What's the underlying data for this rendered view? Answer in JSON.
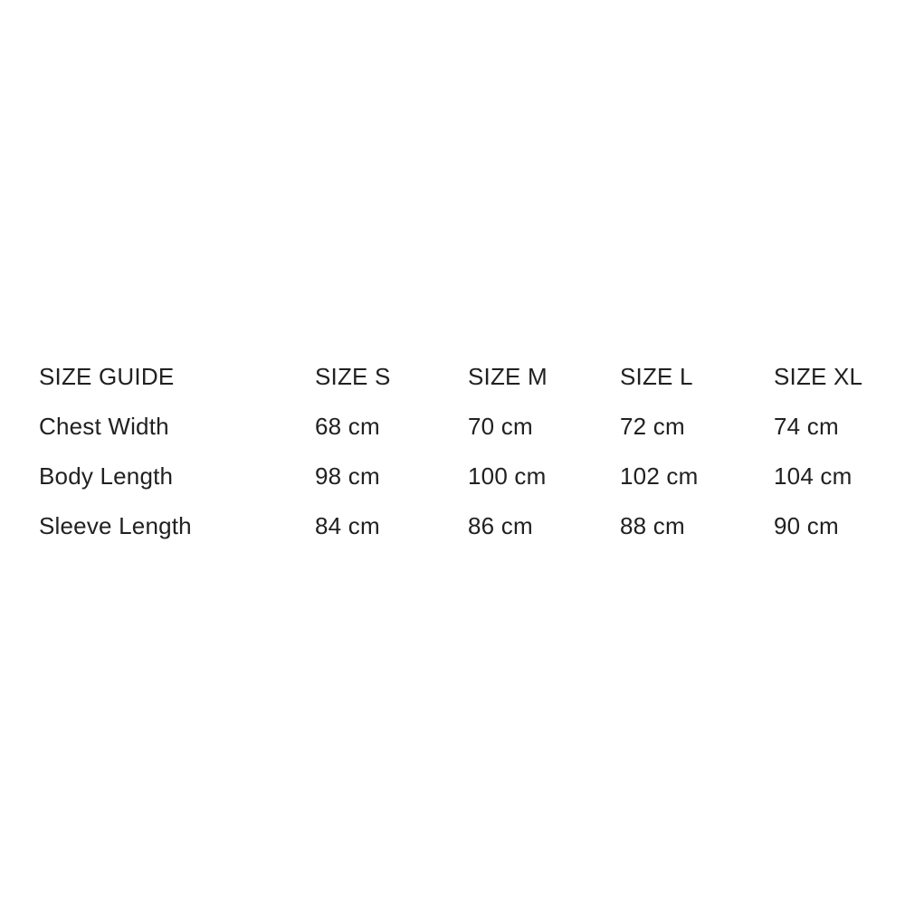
{
  "page": {
    "background_color": "#ffffff",
    "text_color": "#212121"
  },
  "size_table": {
    "title": "SIZE GUIDE",
    "columns": [
      "SIZE S",
      "SIZE M",
      "SIZE L",
      "SIZE XL"
    ],
    "rows": [
      {
        "label": "Chest Width",
        "values": [
          "68 cm",
          "70 cm",
          "72 cm",
          "74 cm"
        ]
      },
      {
        "label": "Body Length",
        "values": [
          "98 cm",
          "100 cm",
          "102 cm",
          "104 cm"
        ]
      },
      {
        "label": "Sleeve Length",
        "values": [
          "84 cm",
          "86 cm",
          "88 cm",
          "90 cm"
        ]
      }
    ]
  },
  "chart_data": {
    "type": "table",
    "title": "SIZE GUIDE",
    "columns": [
      "SIZE GUIDE",
      "SIZE S",
      "SIZE M",
      "SIZE L",
      "SIZE XL"
    ],
    "rows": [
      [
        "Chest Width",
        "68 cm",
        "70 cm",
        "72 cm",
        "74 cm"
      ],
      [
        "Body Length",
        "98 cm",
        "100 cm",
        "102 cm",
        "104 cm"
      ],
      [
        "Sleeve Length",
        "84 cm",
        "86 cm",
        "88 cm",
        "90 cm"
      ]
    ],
    "units": "cm",
    "layout": {
      "grid": false,
      "borders": false,
      "alignment": "left"
    }
  }
}
